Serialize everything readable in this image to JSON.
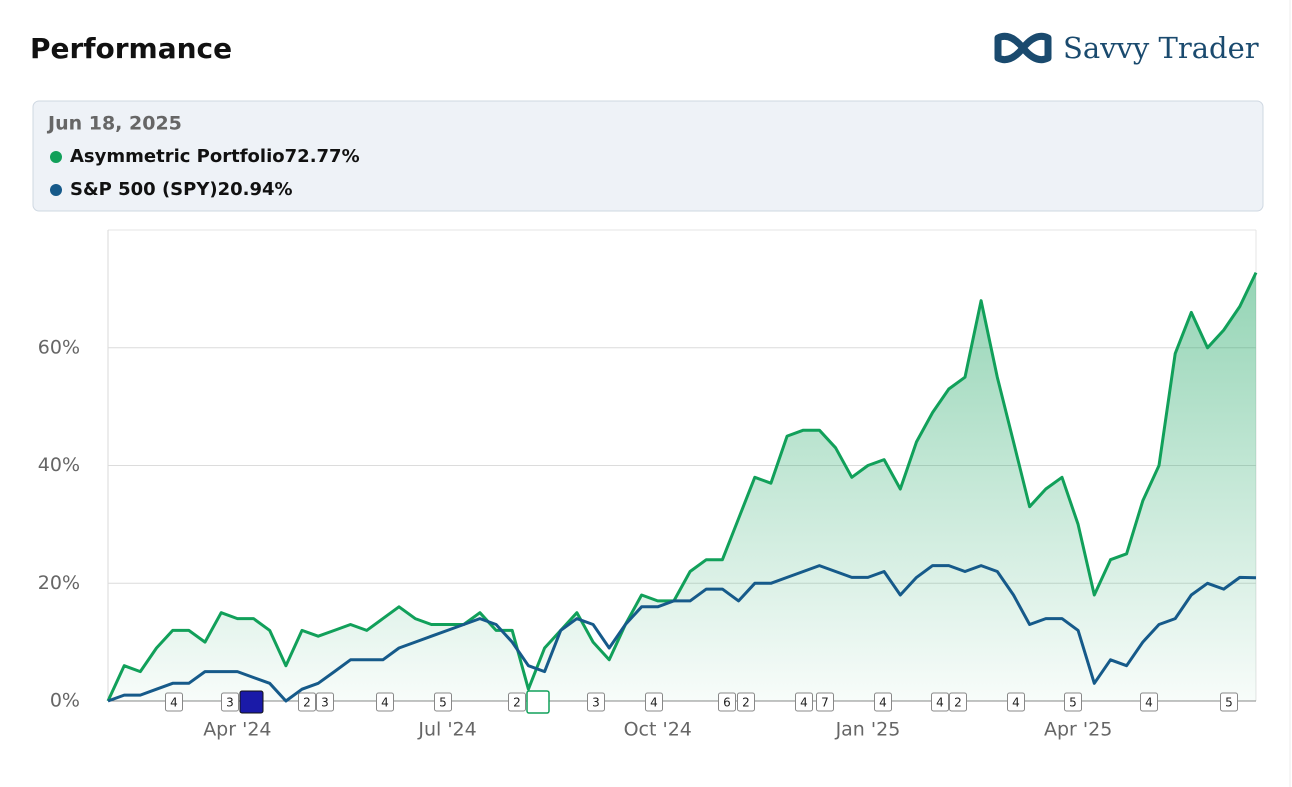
{
  "chart_data": {
    "type": "line",
    "title": "Performance",
    "brand": "Savvy Trader",
    "tooltip": {
      "date": "Jun 18, 2025",
      "labels": [
        "72.77%",
        "20.94%"
      ]
    },
    "categories": [
      null,
      null,
      null,
      null,
      null,
      null,
      null,
      null,
      "Apr '24",
      null,
      null,
      null,
      null,
      null,
      null,
      null,
      null,
      null,
      null,
      null,
      null,
      "Jul '24",
      null,
      null,
      null,
      null,
      null,
      null,
      null,
      null,
      null,
      null,
      null,
      null,
      "Oct '24",
      null,
      null,
      null,
      null,
      null,
      null,
      null,
      null,
      null,
      null,
      null,
      null,
      "Jan '25",
      null,
      null,
      null,
      null,
      null,
      null,
      null,
      null,
      null,
      null,
      null,
      null,
      "Apr '25",
      null,
      null,
      null,
      null,
      null,
      null,
      null,
      null,
      null,
      null,
      null
    ],
    "series": [
      {
        "name": "Asymmetric Portfolio",
        "color": "#11a05a",
        "fill": true,
        "values": [
          0,
          6,
          5,
          9,
          12,
          12,
          10,
          15,
          14,
          14,
          12,
          6,
          12,
          11,
          12,
          13,
          12,
          14,
          16,
          14,
          13,
          13,
          13,
          15,
          12,
          12,
          2,
          9,
          12,
          15,
          10,
          7,
          13,
          18,
          17,
          17,
          22,
          24,
          24,
          31,
          38,
          37,
          45,
          46,
          46,
          43,
          38,
          40,
          41,
          36,
          44,
          49,
          53,
          55,
          68,
          55,
          44,
          33,
          36,
          38,
          30,
          18,
          24,
          25,
          34,
          40,
          59,
          66,
          60,
          63,
          67,
          72.77
        ]
      },
      {
        "name": "S&P 500 (SPY)",
        "color": "#165a8a",
        "fill": false,
        "values": [
          0,
          1,
          1,
          2,
          3,
          3,
          5,
          5,
          5,
          4,
          3,
          0,
          2,
          3,
          5,
          7,
          7,
          7,
          9,
          10,
          11,
          12,
          13,
          14,
          13,
          10,
          6,
          5,
          12,
          14,
          13,
          9,
          13,
          16,
          16,
          17,
          17,
          19,
          19,
          17,
          20,
          20,
          21,
          22,
          23,
          22,
          21,
          21,
          22,
          18,
          21,
          23,
          23,
          22,
          23,
          22,
          18,
          13,
          14,
          14,
          12,
          3,
          7,
          6,
          10,
          13,
          14,
          18,
          20,
          19,
          21,
          20.94
        ]
      }
    ],
    "ylim": [
      0,
      80
    ],
    "yticks": [
      {
        "value": 0,
        "label": "0%"
      },
      {
        "value": 20,
        "label": "20%"
      },
      {
        "value": 40,
        "label": "40%"
      },
      {
        "value": 60,
        "label": "60%"
      }
    ],
    "grid": true,
    "markers": [
      4,
      3,
      2,
      3,
      4,
      5,
      2,
      3,
      4,
      6,
      2,
      4,
      7,
      4,
      4,
      2,
      4,
      5,
      4,
      5
    ]
  }
}
